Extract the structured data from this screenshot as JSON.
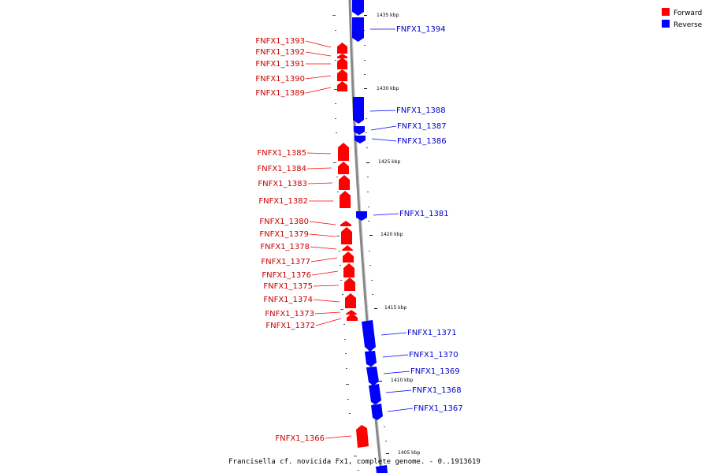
{
  "caption": "Francisella cf. novicida Fx1, complete genome. - 0..1913619",
  "legend": [
    {
      "label": "Forward",
      "color": "#ff0000"
    },
    {
      "label": "Reverse",
      "color": "#0000ff"
    }
  ],
  "colors": {
    "forward": "#ff0000",
    "reverse": "#0000ff",
    "backbone": "#888888"
  },
  "ticks": [
    "1435 kbp",
    "1430 kbp",
    "1425 kbp",
    "1420 kbp",
    "1415 kbp",
    "1410 kbp",
    "1405 kbp"
  ],
  "forward_genes": [
    "FNFX1_1393",
    "FNFX1_1392",
    "FNFX1_1391",
    "FNFX1_1390",
    "FNFX1_1389",
    "FNFX1_1385",
    "FNFX1_1384",
    "FNFX1_1383",
    "FNFX1_1382",
    "FNFX1_1380",
    "FNFX1_1379",
    "FNFX1_1378",
    "FNFX1_1377",
    "FNFX1_1376",
    "FNFX1_1375",
    "FNFX1_1374",
    "FNFX1_1373",
    "FNFX1_1372",
    "FNFX1_1366"
  ],
  "reverse_genes": [
    "FNFX1_1394",
    "FNFX1_1388",
    "FNFX1_1387",
    "FNFX1_1386",
    "FNFX1_1381",
    "FNFX1_1371",
    "FNFX1_1370",
    "FNFX1_1369",
    "FNFX1_1368",
    "FNFX1_1367"
  ]
}
